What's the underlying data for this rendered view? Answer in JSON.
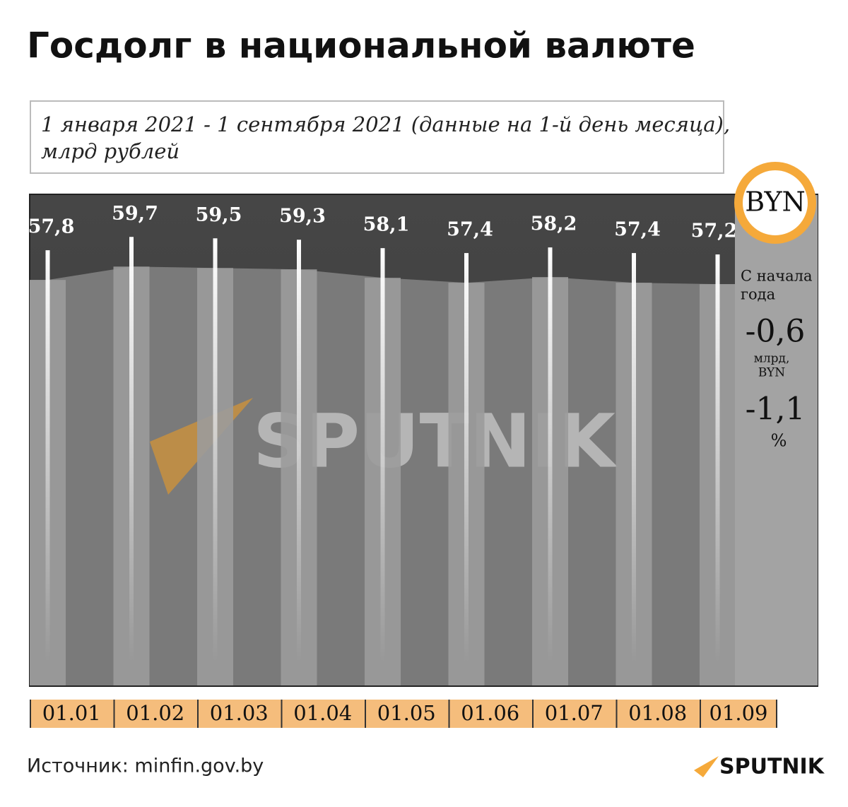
{
  "chart_data": {
    "type": "bar",
    "title": "Госдолг в национальной валюте",
    "subtitle": "1 января 2021 - 1 сентября 2021 (данные на 1-й день месяца),",
    "subtitle_line2": "млрд рублей",
    "categories": [
      "01.01",
      "01.02",
      "01.03",
      "01.04",
      "01.05",
      "01.06",
      "01.07",
      "01.08",
      "01.09"
    ],
    "values": [
      57.8,
      59.7,
      59.5,
      59.3,
      58.1,
      57.4,
      58.2,
      57.4,
      57.2
    ],
    "value_labels": [
      "57,8",
      "59,7",
      "59,5",
      "59,3",
      "58,1",
      "57,4",
      "58,2",
      "57,4",
      "57,2"
    ],
    "color": "#9b9b9b",
    "ylim": [
      0,
      70
    ],
    "side_panel": {
      "currency": "BYN",
      "caption_line1": "С начала",
      "caption_line2": "года",
      "change_abs": "-0,6",
      "change_abs_unit_line1": "млрд,",
      "change_abs_unit_line2": "BYN",
      "change_pct": "-1,1",
      "change_pct_unit": "%"
    },
    "source": "Источник: minfin.gov.by",
    "watermark": "SPUTNIK",
    "logo": "SPUTNIK"
  }
}
